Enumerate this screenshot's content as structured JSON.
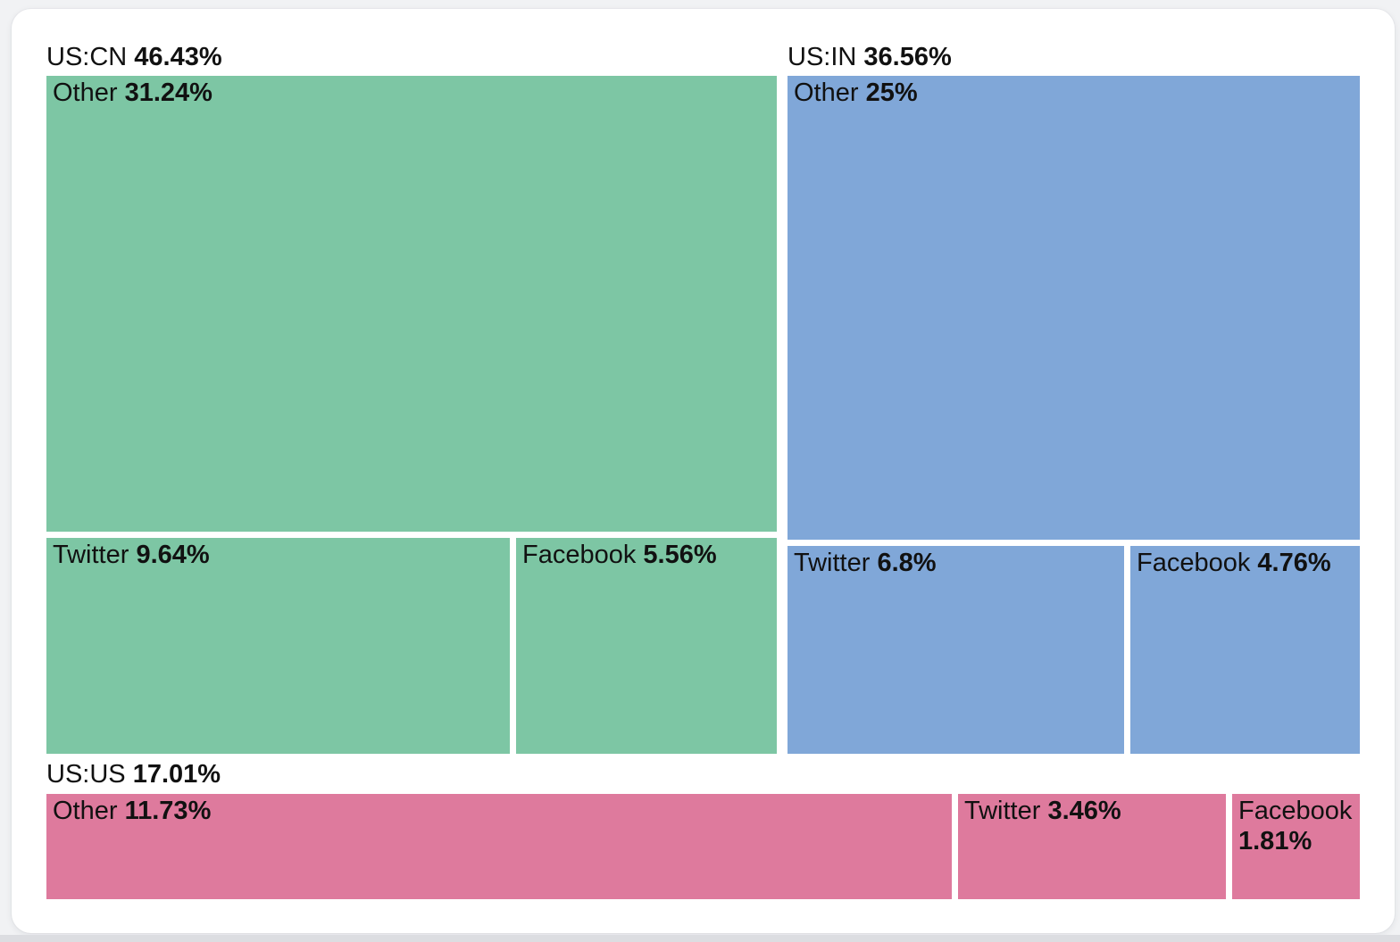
{
  "chart_data": {
    "type": "treemap",
    "unit": "%",
    "groups": [
      {
        "label": "US:CN",
        "value": 46.43,
        "value_text": "46.43%",
        "color": "#7dc6a4",
        "children": [
          {
            "label": "Other",
            "value": 31.24,
            "value_text": "31.24%"
          },
          {
            "label": "Twitter",
            "value": 9.64,
            "value_text": "9.64%"
          },
          {
            "label": "Facebook",
            "value": 5.56,
            "value_text": "5.56%"
          }
        ]
      },
      {
        "label": "US:IN",
        "value": 36.56,
        "value_text": "36.56%",
        "color": "#80a7d8",
        "children": [
          {
            "label": "Other",
            "value": 25,
            "value_text": "25%"
          },
          {
            "label": "Twitter",
            "value": 6.8,
            "value_text": "6.8%"
          },
          {
            "label": "Facebook",
            "value": 4.76,
            "value_text": "4.76%"
          }
        ]
      },
      {
        "label": "US:US",
        "value": 17.01,
        "value_text": "17.01%",
        "color": "#de7a9d",
        "children": [
          {
            "label": "Other",
            "value": 11.73,
            "value_text": "11.73%"
          },
          {
            "label": "Twitter",
            "value": 3.46,
            "value_text": "3.46%"
          },
          {
            "label": "Facebook",
            "value": 1.81,
            "value_text": "1.81%"
          }
        ]
      }
    ]
  }
}
